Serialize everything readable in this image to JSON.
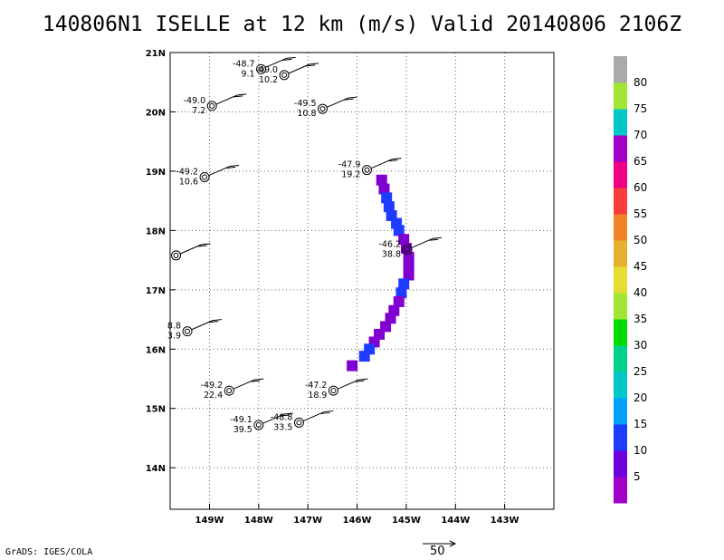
{
  "title": "140806N1 ISELLE at 12 km (m/s) Valid 20140806 2106Z",
  "credit": "GrADS: IGES/COLA",
  "scale_label": "50",
  "chart_data": {
    "type": "map",
    "grid": true,
    "xlim_lon": [
      -149.8,
      -142.0
    ],
    "ylim_lat": [
      13.3,
      21.0
    ],
    "xticks": [
      {
        "lon": -149,
        "label": "149W"
      },
      {
        "lon": -148,
        "label": "148W"
      },
      {
        "lon": -147,
        "label": "147W"
      },
      {
        "lon": -146,
        "label": "146W"
      },
      {
        "lon": -145,
        "label": "145W"
      },
      {
        "lon": -144,
        "label": "144W"
      },
      {
        "lon": -143,
        "label": "143W"
      }
    ],
    "yticks": [
      {
        "lat": 21,
        "label": "21N"
      },
      {
        "lat": 20,
        "label": "20N"
      },
      {
        "lat": 19,
        "label": "19N"
      },
      {
        "lat": 18,
        "label": "18N"
      },
      {
        "lat": 17,
        "label": "17N"
      },
      {
        "lat": 16,
        "label": "16N"
      },
      {
        "lat": 15,
        "label": "15N"
      },
      {
        "lat": 14,
        "label": "14N"
      }
    ],
    "colorbar": {
      "labels": [
        "5",
        "10",
        "15",
        "20",
        "25",
        "30",
        "35",
        "40",
        "45",
        "50",
        "55",
        "60",
        "65",
        "70",
        "75",
        "80"
      ],
      "colors": [
        "#a000c8",
        "#6e00dc",
        "#1e3cff",
        "#00a0ff",
        "#00c8c8",
        "#00d28c",
        "#00dc00",
        "#a0e632",
        "#e6dc32",
        "#e6af2d",
        "#f08228",
        "#fa3c3c",
        "#f00082",
        "#a000c8",
        "#00c8c8",
        "#a0e632",
        "#aaaaaa"
      ]
    },
    "stations": [
      {
        "lon": -147.95,
        "lat": 20.72,
        "t": "-48.7",
        "w": "9.1"
      },
      {
        "lon": -147.48,
        "lat": 20.62,
        "t": "-49.0",
        "w": "10.2"
      },
      {
        "lon": -148.95,
        "lat": 20.1,
        "t": "-49.0",
        "w": "7.2"
      },
      {
        "lon": -146.7,
        "lat": 20.05,
        "t": "-49.5",
        "w": "10.8"
      },
      {
        "lon": -149.1,
        "lat": 18.9,
        "t": "-49.2",
        "w": "10.6"
      },
      {
        "lon": -145.8,
        "lat": 19.02,
        "t": "-47.9",
        "w": "19.2"
      },
      {
        "lon": -149.68,
        "lat": 17.58,
        "t": "",
        "w": ""
      },
      {
        "lon": -144.98,
        "lat": 17.68,
        "t": "-46.2",
        "w": "38.8"
      },
      {
        "lon": -149.45,
        "lat": 16.3,
        "t": "8.8",
        "w": "3.9"
      },
      {
        "lon": -148.6,
        "lat": 15.3,
        "t": "-49.2",
        "w": "22.4"
      },
      {
        "lon": -146.48,
        "lat": 15.3,
        "t": "-47.2",
        "w": "18.9"
      },
      {
        "lon": -148.0,
        "lat": 14.72,
        "t": "-49.1",
        "w": "39.5"
      },
      {
        "lon": -147.18,
        "lat": 14.76,
        "t": "-48.8",
        "w": "33.5"
      }
    ],
    "wind_band": [
      {
        "lon": -145.5,
        "lat": 18.85,
        "v": 5
      },
      {
        "lon": -145.45,
        "lat": 18.7,
        "v": 5
      },
      {
        "lon": -145.4,
        "lat": 18.55,
        "v": 10
      },
      {
        "lon": -145.35,
        "lat": 18.4,
        "v": 10
      },
      {
        "lon": -145.3,
        "lat": 18.25,
        "v": 10
      },
      {
        "lon": -145.2,
        "lat": 18.12,
        "v": 12
      },
      {
        "lon": -145.15,
        "lat": 18.0,
        "v": 12
      },
      {
        "lon": -145.05,
        "lat": 17.85,
        "v": 5
      },
      {
        "lon": -145.0,
        "lat": 17.7,
        "v": 5
      },
      {
        "lon": -144.95,
        "lat": 17.55,
        "v": 5
      },
      {
        "lon": -144.95,
        "lat": 17.4,
        "v": 5
      },
      {
        "lon": -144.95,
        "lat": 17.25,
        "v": 5
      },
      {
        "lon": -145.05,
        "lat": 17.1,
        "v": 10
      },
      {
        "lon": -145.1,
        "lat": 16.95,
        "v": 12
      },
      {
        "lon": -145.15,
        "lat": 16.8,
        "v": 5
      },
      {
        "lon": -145.25,
        "lat": 16.65,
        "v": 5
      },
      {
        "lon": -145.32,
        "lat": 16.52,
        "v": 5
      },
      {
        "lon": -145.42,
        "lat": 16.38,
        "v": 5
      },
      {
        "lon": -145.55,
        "lat": 16.25,
        "v": 5
      },
      {
        "lon": -145.65,
        "lat": 16.12,
        "v": 5
      },
      {
        "lon": -145.75,
        "lat": 16.0,
        "v": 12
      },
      {
        "lon": -145.85,
        "lat": 15.88,
        "v": 10
      },
      {
        "lon": -146.1,
        "lat": 15.72,
        "v": 5
      }
    ]
  }
}
